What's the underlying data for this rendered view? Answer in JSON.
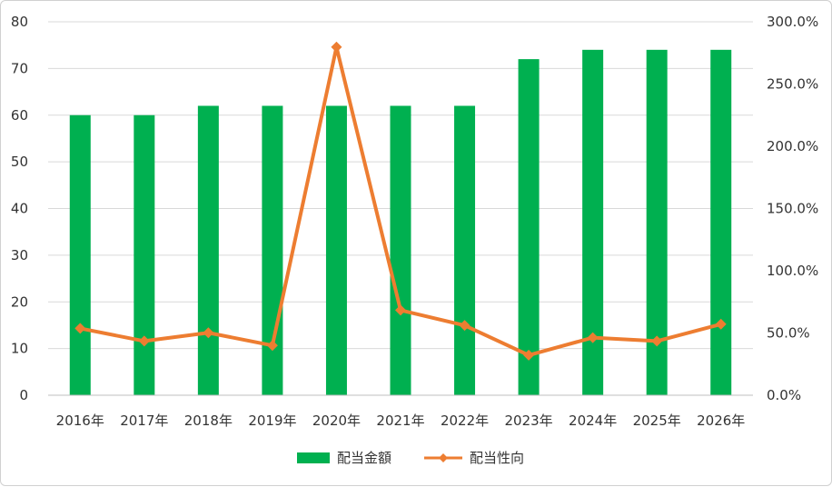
{
  "chart_data": {
    "type": "bar+line",
    "title": "",
    "categories": [
      "2016年",
      "2017年",
      "2018年",
      "2019年",
      "2020年",
      "2021年",
      "2022年",
      "2023年",
      "2024年",
      "2025年",
      "2026年"
    ],
    "series": [
      {
        "name": "配当金額",
        "type": "bar",
        "axis": "left",
        "color": "#00b050",
        "values": [
          60,
          60,
          62,
          62,
          62,
          62,
          62,
          72,
          74,
          74,
          74
        ]
      },
      {
        "name": "配当性向",
        "type": "line",
        "axis": "right",
        "color": "#ed7d31",
        "values": [
          53.7,
          43.5,
          50.2,
          40.0,
          279.7,
          68.3,
          56.1,
          32.2,
          46.3,
          43.5,
          57.1
        ]
      }
    ],
    "y_left": {
      "min": 0,
      "max": 80,
      "step": 10,
      "ticks": [
        "0",
        "10",
        "20",
        "30",
        "40",
        "50",
        "60",
        "70",
        "80"
      ]
    },
    "y_right": {
      "min": 0,
      "max": 300,
      "step": 50,
      "ticks": [
        "0.0%",
        "50.0%",
        "100.0%",
        "150.0%",
        "200.0%",
        "250.0%",
        "300.0%"
      ]
    },
    "grid": true,
    "legend_position": "bottom"
  }
}
